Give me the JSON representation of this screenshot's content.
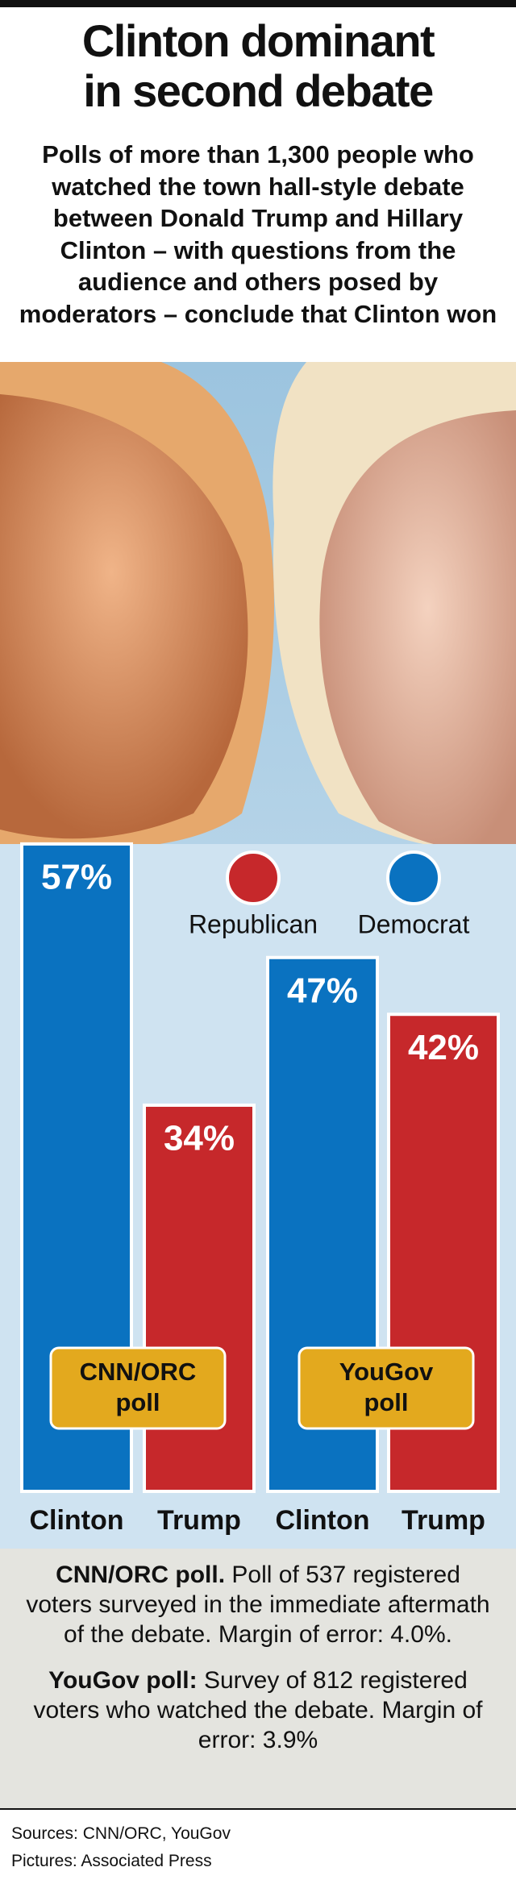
{
  "chart_data": {
    "type": "bar",
    "title": [
      "Clinton dominant",
      "in second debate"
    ],
    "subtitle": "Polls of more than 1,300 people who watched the town hall-style debate between Donald Trump and Hillary Clinton – with questions from the audience and others posed by moderators – conclude that Clinton won",
    "categories": [
      "Clinton",
      "Trump",
      "Clinton",
      "Trump"
    ],
    "values": [
      57,
      34,
      47,
      42
    ],
    "value_labels": [
      "57%",
      "34%",
      "47%",
      "42%"
    ],
    "bar_colors": [
      "#0a72c0",
      "#c6282b",
      "#0a72c0",
      "#c6282b"
    ],
    "legend": [
      {
        "name": "Republican",
        "color": "#c6282b"
      },
      {
        "name": "Democrat",
        "color": "#0a72c0"
      }
    ],
    "group_labels": [
      [
        "CNN/ORC",
        "poll"
      ],
      [
        "YouGov",
        "poll"
      ]
    ],
    "notes": [
      {
        "bold": "CNN/ORC poll.",
        "text": "Poll of 537 registered voters surveyed in the immediate aftermath of the debate. Margin of error: 4.0%."
      },
      {
        "bold": "YouGov poll:",
        "text": "Survey of 812 registered voters who watched the debate. Margin of error: 3.9%"
      }
    ],
    "sources": [
      "Sources: CNN/ORC, YouGov",
      "Pictures: Associated Press"
    ]
  }
}
